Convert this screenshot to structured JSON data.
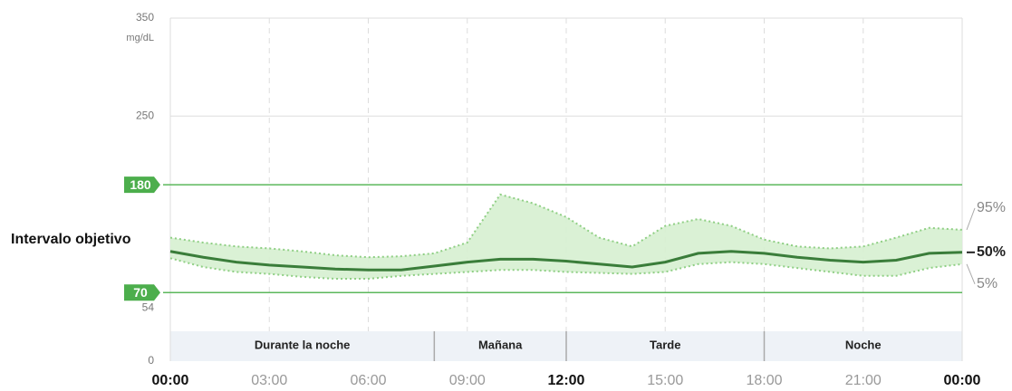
{
  "chart_data": {
    "type": "agp",
    "y_unit_label": "mg/dL",
    "target_label": "Intervalo objetivo",
    "target_range": [
      70,
      180
    ],
    "ylim": [
      0,
      350
    ],
    "yticks": [
      0,
      54,
      250,
      350
    ],
    "xlim": [
      0,
      24
    ],
    "xticks": [
      {
        "value": 0,
        "label": "00:00"
      },
      {
        "value": 3,
        "label": "03:00"
      },
      {
        "value": 6,
        "label": "06:00"
      },
      {
        "value": 9,
        "label": "09:00"
      },
      {
        "value": 12,
        "label": "12:00"
      },
      {
        "value": 15,
        "label": "15:00"
      },
      {
        "value": 18,
        "label": "18:00"
      },
      {
        "value": 21,
        "label": "21:00"
      },
      {
        "value": 24,
        "label": "00:00"
      }
    ],
    "bold_xticks": [
      0,
      12,
      24
    ],
    "periods": [
      {
        "label": "Durante la noche",
        "range": [
          0,
          8
        ]
      },
      {
        "label": "Mañana",
        "range": [
          8,
          12
        ]
      },
      {
        "label": "Tarde",
        "range": [
          12,
          18
        ]
      },
      {
        "label": "Noche",
        "range": [
          18,
          24
        ]
      }
    ],
    "grid": true,
    "x": [
      0,
      1,
      2,
      3,
      4,
      5,
      6,
      7,
      8,
      9,
      10,
      11,
      12,
      13,
      14,
      15,
      16,
      17,
      18,
      19,
      20,
      21,
      22,
      23,
      24
    ],
    "series": [
      {
        "name": "95%",
        "color": "#8fcf84",
        "values": [
          126,
          121,
          117,
          115,
          112,
          108,
          106,
          107,
          110,
          121,
          170,
          161,
          147,
          126,
          117,
          138,
          145,
          138,
          124,
          117,
          115,
          117,
          126,
          136,
          134
        ]
      },
      {
        "name": "50%",
        "color": "#3a7d3a",
        "values": [
          112,
          106,
          101,
          98,
          96,
          94,
          93,
          93,
          97,
          101,
          104,
          104,
          102,
          99,
          96,
          101,
          110,
          112,
          110,
          106,
          103,
          101,
          103,
          110,
          111
        ]
      },
      {
        "name": "5%",
        "color": "#8fcf84",
        "values": [
          105,
          96,
          91,
          89,
          86,
          84,
          84,
          87,
          89,
          91,
          93,
          93,
          91,
          90,
          89,
          91,
          99,
          101,
          99,
          95,
          91,
          87,
          87,
          95,
          99
        ]
      }
    ]
  }
}
